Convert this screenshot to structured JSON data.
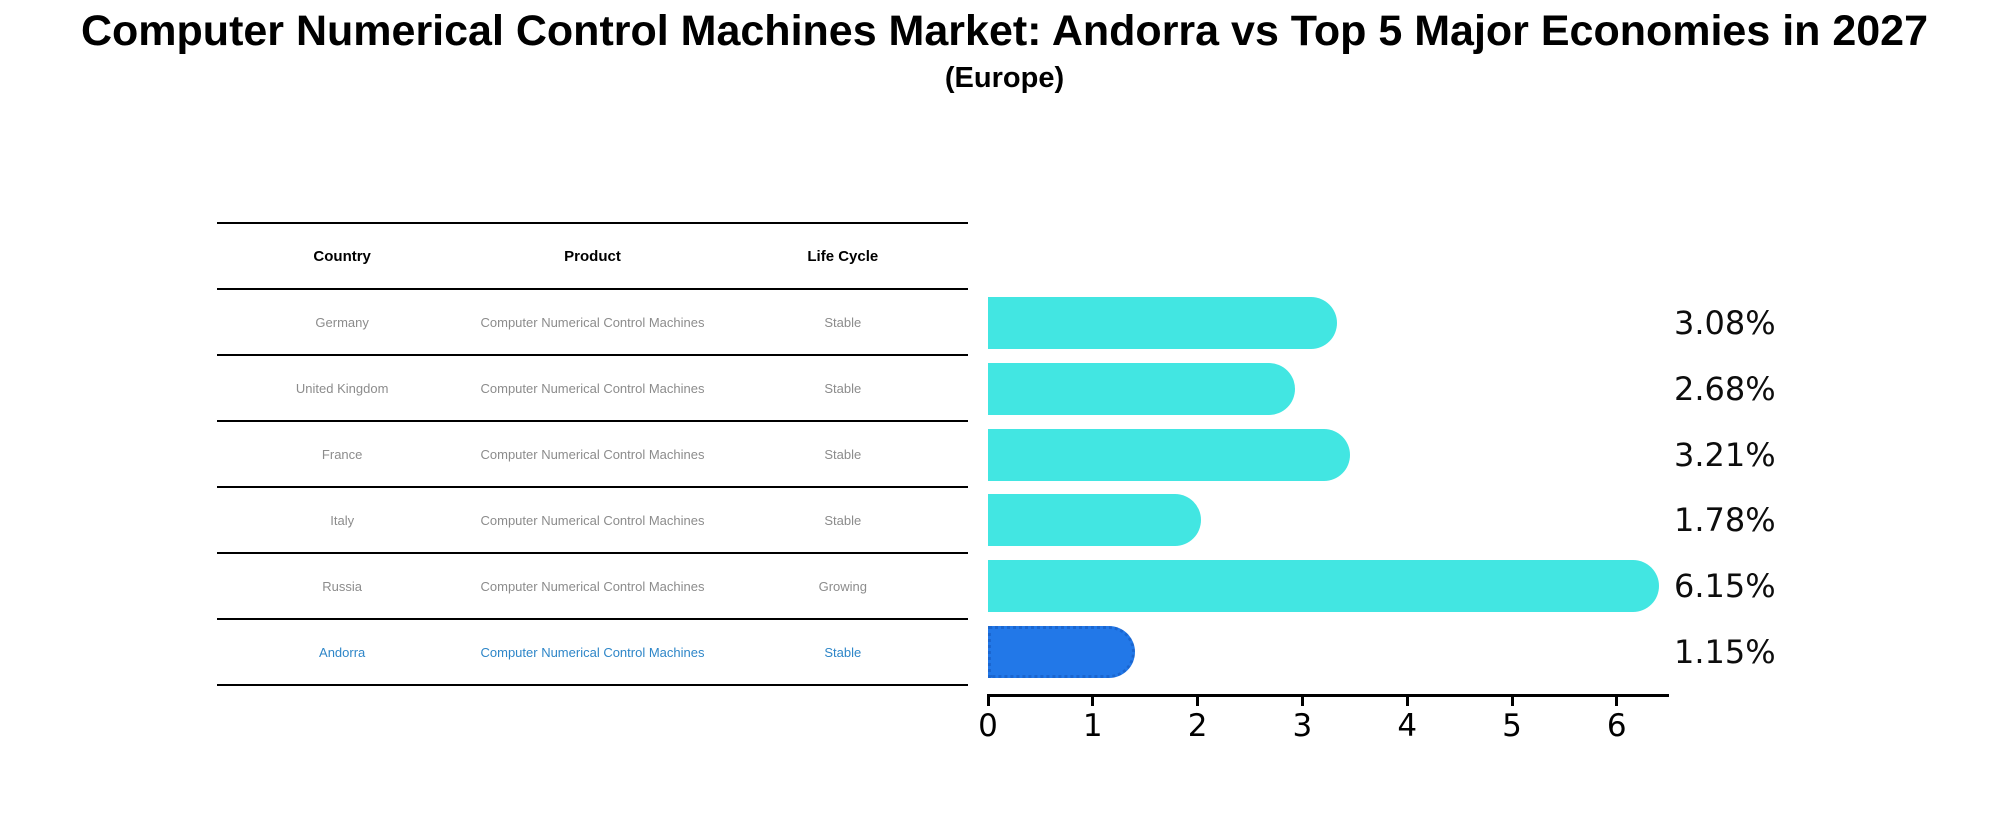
{
  "title": "Computer Numerical Control Machines Market: Andorra vs Top 5 Major Economies in 2027",
  "subtitle": "(Europe)",
  "table": {
    "headers": [
      "Country",
      "Product",
      "Life Cycle"
    ],
    "rows": [
      {
        "country": "Germany",
        "product": "Computer Numerical Control Machines",
        "life_cycle": "Stable"
      },
      {
        "country": "United Kingdom",
        "product": "Computer Numerical Control Machines",
        "life_cycle": "Stable"
      },
      {
        "country": "France",
        "product": "Computer Numerical Control Machines",
        "life_cycle": "Stable"
      },
      {
        "country": "Italy",
        "product": "Computer Numerical Control Machines",
        "life_cycle": "Stable"
      },
      {
        "country": "Russia",
        "product": "Computer Numerical Control Machines",
        "life_cycle": "Growing"
      },
      {
        "country": "Andorra",
        "product": "Computer Numerical Control Machines",
        "life_cycle": "Stable"
      }
    ],
    "highlighted_row": "Andorra"
  },
  "chart_data": {
    "type": "bar",
    "orientation": "horizontal",
    "categories": [
      "Germany",
      "United Kingdom",
      "France",
      "Italy",
      "Russia",
      "Andorra"
    ],
    "values": [
      3.08,
      2.68,
      3.21,
      1.78,
      6.15,
      1.15
    ],
    "value_labels": [
      "3.08%",
      "2.68%",
      "3.21%",
      "1.78%",
      "6.15%",
      "1.15%"
    ],
    "bar_colors": [
      "#42e6e2",
      "#42e6e2",
      "#42e6e2",
      "#42e6e2",
      "#42e6e2",
      "#2278e8"
    ],
    "x_ticks": [
      "0",
      "1",
      "2",
      "3",
      "4",
      "5",
      "6"
    ],
    "xlim": [
      0,
      6.5
    ],
    "grid": "off",
    "legend": "none",
    "title": "Computer Numerical Control Machines Market: Andorra vs Top 5 Major Economies in 2027",
    "xlabel": "",
    "ylabel": ""
  },
  "colors": {
    "bar_default": "#42e6e2",
    "bar_highlight": "#2278e8",
    "highlight_text": "#2e86c8",
    "table_text": "#8c8c8c",
    "axis": "#000000"
  }
}
